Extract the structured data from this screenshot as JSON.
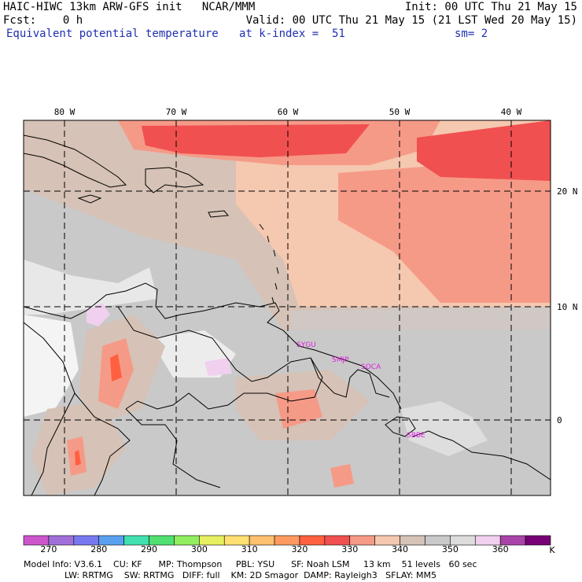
{
  "header": {
    "line1_left": "HAIC-HIWC 13km ARW-GFS init   NCAR/MMM",
    "line1_right": "Init: 00 UTC Thu 21 May 15",
    "line2_left": "Fcst:    0 h",
    "line2_right": "Valid: 00 UTC Thu 21 May 15 (21 LST Wed 20 May 15)",
    "line3_field": "Equivalent potential temperature",
    "line3_level": "at k-index =  51",
    "line3_smooth": "sm= 2"
  },
  "map": {
    "lon_labels": [
      "80 W",
      "70 W",
      "60 W",
      "50 W",
      "40 W"
    ],
    "lat_labels": [
      "20 N",
      "10 N",
      "0"
    ],
    "stations": [
      "SYGU",
      "SMJP",
      "SOCA",
      "SBBE"
    ]
  },
  "colorbar": {
    "ticks": [
      "270",
      "280",
      "290",
      "300",
      "310",
      "320",
      "330",
      "340",
      "350",
      "360"
    ],
    "unit": "K",
    "colors": [
      "#cc55cc",
      "#a070d8",
      "#7878f0",
      "#5aa0f0",
      "#40e0b0",
      "#50e070",
      "#90ee60",
      "#e6f060",
      "#ffe070",
      "#ffc070",
      "#ff9a60",
      "#ff6040",
      "#f05050",
      "#f69a88",
      "#f5c8b0",
      "#d6c2b6",
      "#c9c9c9",
      "#dcdcdc",
      "#f0d0ee",
      "#aa44aa",
      "#770077"
    ]
  },
  "footer": {
    "line1": "Model Info: V3.6.1    CU: KF      MP: Thompson     PBL: YSU      SF: Noah LSM     13 km    51 levels   60 sec",
    "line2": "LW: RRTMG    SW: RRTMG   DIFF: full    KM: 2D Smagor  DAMP: Rayleigh3   SFLAY: MM5"
  }
}
